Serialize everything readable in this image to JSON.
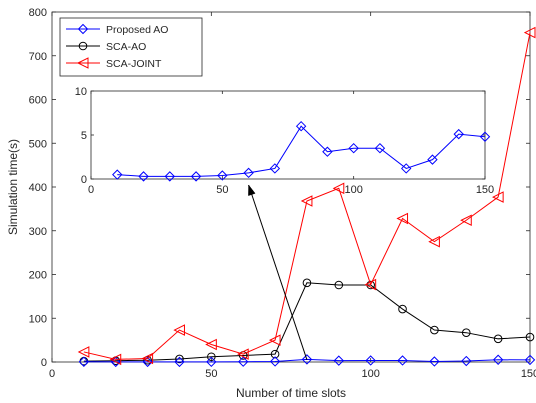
{
  "chart_data": [
    {
      "type": "line",
      "role": "main",
      "xlabel": "Number of time slots",
      "ylabel": "Simulation time(s)",
      "xlim": [
        0,
        150
      ],
      "ylim": [
        0,
        800
      ],
      "xticks": [
        0,
        50,
        100,
        150
      ],
      "yticks": [
        0,
        100,
        200,
        300,
        400,
        500,
        600,
        700,
        800
      ],
      "grid": false,
      "legend_position": "top-left",
      "series": [
        {
          "name": "Proposed AO",
          "color": "#0000ff",
          "marker": "diamond",
          "x": [
            10,
            20,
            30,
            40,
            50,
            60,
            70,
            80,
            90,
            100,
            110,
            120,
            130,
            140,
            150
          ],
          "y": [
            0.5,
            0.3,
            0.3,
            0.3,
            0.4,
            0.7,
            1.2,
            6.0,
            3.1,
            3.5,
            3.5,
            1.2,
            2.2,
            5.1,
            4.8
          ]
        },
        {
          "name": "SCA-AO",
          "color": "#000000",
          "marker": "circle",
          "x": [
            10,
            20,
            30,
            40,
            50,
            60,
            70,
            80,
            90,
            100,
            110,
            120,
            130,
            140,
            150
          ],
          "y": [
            2,
            3,
            4,
            7,
            12,
            15,
            18,
            181,
            176,
            176,
            121,
            73,
            67,
            53,
            57
          ]
        },
        {
          "name": "SCA-JOINT",
          "color": "#ff0000",
          "marker": "triangle-left",
          "x": [
            10,
            20,
            30,
            40,
            50,
            60,
            70,
            80,
            90,
            100,
            110,
            120,
            130,
            140,
            150
          ],
          "y": [
            23,
            6,
            8,
            73,
            40,
            18,
            50,
            368,
            397,
            177,
            328,
            275,
            324,
            377,
            753
          ]
        }
      ]
    },
    {
      "type": "line",
      "role": "inset",
      "xlim": [
        0,
        150
      ],
      "ylim": [
        0,
        10
      ],
      "xticks": [
        0,
        50,
        100,
        150
      ],
      "yticks": [
        0,
        5,
        10
      ],
      "grid": false,
      "series": [
        {
          "name": "Proposed AO",
          "color": "#0000ff",
          "marker": "diamond",
          "x": [
            10,
            20,
            30,
            40,
            50,
            60,
            70,
            80,
            90,
            100,
            110,
            120,
            130,
            140,
            150
          ],
          "y": [
            0.5,
            0.3,
            0.3,
            0.3,
            0.4,
            0.7,
            1.2,
            6.0,
            3.1,
            3.5,
            3.5,
            1.2,
            2.2,
            5.1,
            4.8
          ]
        }
      ]
    }
  ],
  "annotation": {
    "type": "arrow",
    "from": {
      "x": 80,
      "y": 5
    },
    "to_inset": {
      "x": 60,
      "y": 0
    }
  }
}
